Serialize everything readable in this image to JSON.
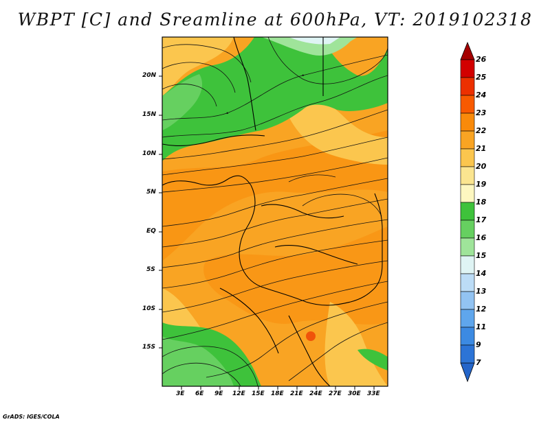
{
  "title": "WBPT [C] and Sreamline at 600hPa, VT: 2019102318",
  "credit": "GrADS: IGES/COLA",
  "lat_labels": [
    "20N",
    "15N",
    "10N",
    "5N",
    "EQ",
    "5S",
    "10S",
    "15S"
  ],
  "lon_labels": [
    "3E",
    "6E",
    "9E",
    "12E",
    "15E",
    "18E",
    "21E",
    "24E",
    "27E",
    "30E",
    "33E"
  ],
  "colorbar": {
    "labels": [
      "26",
      "25",
      "24",
      "23",
      "22",
      "21",
      "20",
      "19",
      "18",
      "17",
      "16",
      "15",
      "14",
      "13",
      "12",
      "11",
      "9",
      "7"
    ],
    "colors": [
      "#a50000",
      "#d20000",
      "#ec3000",
      "#f85a00",
      "#f98a0a",
      "#f9a423",
      "#fbc64e",
      "#fbe590",
      "#fdf7c0",
      "#3ec23b",
      "#66d060",
      "#9fe49a",
      "#dff4f4",
      "#bcdcf6",
      "#92c3f2",
      "#5fa6ec",
      "#3c8ae2",
      "#2465c9"
    ]
  }
}
